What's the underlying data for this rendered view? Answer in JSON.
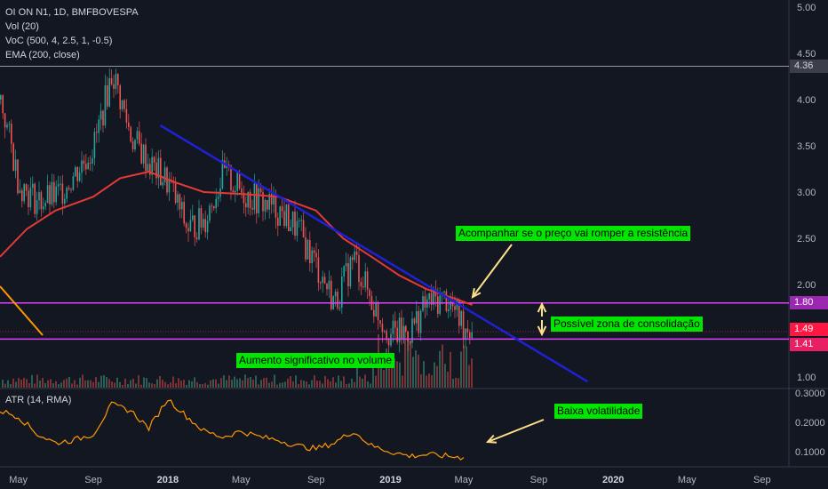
{
  "legend": {
    "symbol": "OI ON N1, 1D, BMFBOVESPA",
    "vol": "Vol (20)",
    "voc": "VoC (500, 4, 2.5, 1, -0.5)",
    "ema": "EMA (200, close)",
    "atr": "ATR (14, RMA)"
  },
  "annotations": {
    "resistance": "Acompanhar se o preço vai romper a resistência",
    "consolidation": "Possível zona de consolidação",
    "volume": "Aumento significativo no volume",
    "volatility": "Baixa volatilidade"
  },
  "price_tags": {
    "top": "4.36",
    "resistance": "1.80",
    "current": "1.49",
    "support": "1.41"
  },
  "colors": {
    "background": "#131722",
    "ema": "#e53935",
    "trendline": "#1e22d4",
    "horizontal_lines": "#e040fb",
    "atr": "#ff9800",
    "note_bg": "#00e600",
    "arrow": "#ffe08a"
  },
  "chart_data": [
    {
      "type": "line",
      "title": "OI ON N1, 1D, BMFBOVESPA",
      "y_axis_ticks": [
        "5.00",
        "4.50",
        "4.00",
        "3.50",
        "3.00",
        "2.50",
        "2.00",
        "1.50",
        "1.00"
      ],
      "x_axis_ticks": [
        "May",
        "Sep",
        "2018",
        "May",
        "Sep",
        "2019",
        "May",
        "Sep",
        "2020",
        "May",
        "Sep"
      ],
      "ylim": [
        0.9,
        5.05
      ],
      "series": [
        {
          "name": "EMA (200, close)",
          "x": [
            "2017-04-01",
            "2017-05-15",
            "2017-07-01",
            "2017-09-01",
            "2017-10-15",
            "2017-12-01",
            "2018-01-15",
            "2018-03-01",
            "2018-05-01",
            "2018-07-01",
            "2018-09-01",
            "2018-10-15",
            "2018-12-01",
            "2019-01-15",
            "2019-03-01",
            "2019-04-15",
            "2019-05-15"
          ],
          "values": [
            2.3,
            2.6,
            2.8,
            2.95,
            3.15,
            3.22,
            3.1,
            3.0,
            2.98,
            2.95,
            2.8,
            2.5,
            2.3,
            2.1,
            1.95,
            1.85,
            1.78
          ]
        },
        {
          "name": "Close",
          "x": [
            "2017-04-01",
            "2017-05-01",
            "2017-06-01",
            "2017-07-01",
            "2017-08-01",
            "2017-09-01",
            "2017-10-01",
            "2017-11-01",
            "2017-12-01",
            "2018-01-01",
            "2018-02-01",
            "2018-03-01",
            "2018-04-01",
            "2018-05-01",
            "2018-06-01",
            "2018-07-01",
            "2018-08-01",
            "2018-09-01",
            "2018-10-01",
            "2018-11-01",
            "2018-12-01",
            "2019-01-01",
            "2019-02-01",
            "2019-03-01",
            "2019-04-01",
            "2019-05-01"
          ],
          "values": [
            4.0,
            3.1,
            2.9,
            2.95,
            3.2,
            3.5,
            4.3,
            3.6,
            3.3,
            3.1,
            2.6,
            2.7,
            3.2,
            3.0,
            2.9,
            2.8,
            2.6,
            2.2,
            1.8,
            2.3,
            1.8,
            1.45,
            1.5,
            1.8,
            1.85,
            1.55
          ]
        }
      ],
      "horizontal_lines": [
        4.36,
        1.8,
        1.41
      ],
      "trendline": {
        "from": [
          "2017-12-20",
          3.72
        ],
        "to": [
          "2019-11-20",
          0.95
        ]
      }
    },
    {
      "type": "line",
      "title": "ATR (14, RMA)",
      "y_axis_ticks": [
        "0.3000",
        "0.2000",
        "0.1000"
      ],
      "ylim": [
        0.05,
        0.31
      ],
      "series": [
        {
          "name": "ATR (14, RMA)",
          "x": [
            "2017-04-01",
            "2017-05-01",
            "2017-06-01",
            "2017-07-01",
            "2017-08-01",
            "2017-09-01",
            "2017-10-01",
            "2017-11-01",
            "2017-12-01",
            "2018-01-01",
            "2018-02-01",
            "2018-03-01",
            "2018-04-01",
            "2018-05-01",
            "2018-06-01",
            "2018-07-01",
            "2018-08-01",
            "2018-09-01",
            "2018-10-01",
            "2018-11-01",
            "2018-12-01",
            "2019-01-01",
            "2019-02-01",
            "2019-03-01",
            "2019-04-01",
            "2019-05-01"
          ],
          "values": [
            0.24,
            0.22,
            0.16,
            0.13,
            0.14,
            0.16,
            0.26,
            0.24,
            0.18,
            0.28,
            0.22,
            0.17,
            0.15,
            0.17,
            0.15,
            0.14,
            0.12,
            0.11,
            0.13,
            0.17,
            0.12,
            0.1,
            0.085,
            0.09,
            0.085,
            0.08
          ]
        }
      ]
    }
  ]
}
